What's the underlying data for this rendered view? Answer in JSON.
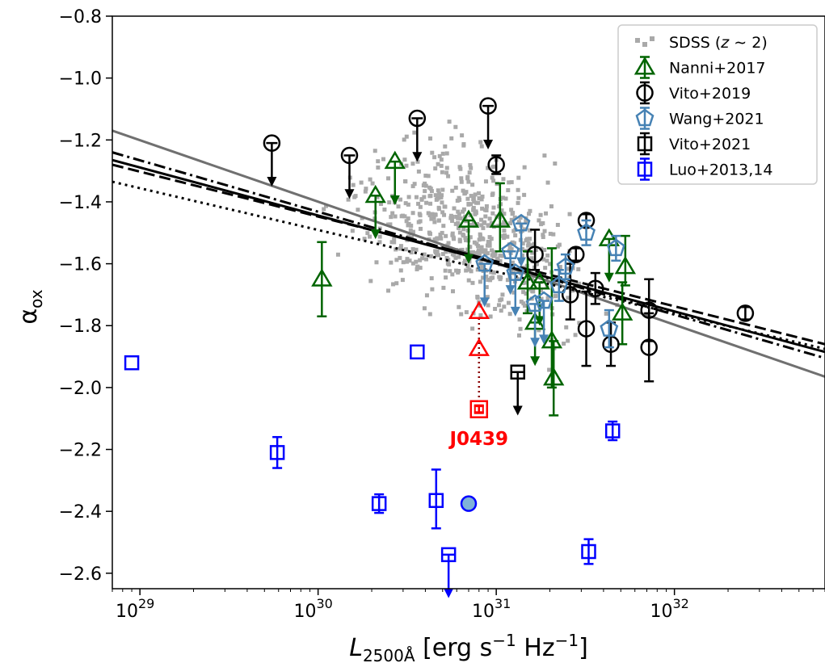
{
  "chart_data": {
    "type": "scatter",
    "title": "",
    "xscale": "log",
    "xlim": [
      7e+28,
      7e+32
    ],
    "ylim": [
      -2.65,
      -0.8
    ],
    "x_ticks": [
      {
        "value": 1e+29,
        "base": "10",
        "exp": "29"
      },
      {
        "value": 1e+30,
        "base": "10",
        "exp": "30"
      },
      {
        "value": 1e+31,
        "base": "10",
        "exp": "31"
      },
      {
        "value": 1e+32,
        "base": "10",
        "exp": "32"
      }
    ],
    "y_ticks": [
      {
        "value": -0.8,
        "label": "−0.8"
      },
      {
        "value": -1.0,
        "label": "−1.0"
      },
      {
        "value": -1.2,
        "label": "−1.2"
      },
      {
        "value": -1.4,
        "label": "−1.4"
      },
      {
        "value": -1.6,
        "label": "−1.6"
      },
      {
        "value": -1.8,
        "label": "−1.8"
      },
      {
        "value": -2.0,
        "label": "−2.0"
      },
      {
        "value": -2.2,
        "label": "−2.2"
      },
      {
        "value": -2.4,
        "label": "−2.4"
      },
      {
        "value": -2.6,
        "label": "−2.6"
      }
    ],
    "xlabel": {
      "base": "L",
      "sub": "2500Å",
      "unit_pre": " [erg s",
      "exp1": "−1",
      "unit_mid": " Hz",
      "exp2": "−1",
      "unit_post": "]"
    },
    "ylabel": {
      "base": "α",
      "sub": "ox"
    },
    "legend": {
      "position": "top-right",
      "entries": [
        {
          "label_pre": "SDSS (",
          "label_it": "z",
          "label_post": " ∼ 2)",
          "marker": "small-square",
          "color": "#a9a9a9"
        },
        {
          "label": "Nanni+2017",
          "marker": "triangle",
          "color": "#006400"
        },
        {
          "label": "Vito+2019",
          "marker": "circle",
          "color": "#000000"
        },
        {
          "label": "Wang+2021",
          "marker": "pentagon",
          "color": "#4682b4"
        },
        {
          "label": "Vito+2021",
          "marker": "square",
          "color": "#000000"
        },
        {
          "label": "Luo+2013,14",
          "marker": "square",
          "color": "#0000ff"
        }
      ]
    },
    "relations": [
      {
        "name": "gray-solid",
        "style": "solid",
        "color": "#707070",
        "points": [
          [
            7e+28,
            -1.17
          ],
          [
            7e+32,
            -1.965
          ]
        ]
      },
      {
        "name": "black-solid",
        "style": "solid",
        "color": "#000000",
        "points": [
          [
            7e+28,
            -1.265
          ],
          [
            7e+32,
            -1.885
          ]
        ]
      },
      {
        "name": "black-dashed",
        "style": "dashed",
        "color": "#000000",
        "points": [
          [
            7e+28,
            -1.28
          ],
          [
            7e+32,
            -1.86
          ]
        ]
      },
      {
        "name": "black-dashdot",
        "style": "dashdot",
        "color": "#000000",
        "points": [
          [
            7e+28,
            -1.24
          ],
          [
            7e+32,
            -1.905
          ]
        ]
      },
      {
        "name": "black-dotted",
        "style": "dotted",
        "color": "#000000",
        "points": [
          [
            7e+28,
            -1.335
          ],
          [
            7e+32,
            -1.875
          ]
        ]
      }
    ],
    "series": [
      {
        "name": "Nanni+2017",
        "marker": "triangle",
        "color": "#006400",
        "points": [
          {
            "x": 1.05e+30,
            "y": -1.65,
            "err": [
              0.12,
              0.12
            ]
          },
          {
            "x": 2.1e+30,
            "y": -1.38,
            "limit": "upper"
          },
          {
            "x": 2.7e+30,
            "y": -1.27,
            "limit": "upper"
          },
          {
            "x": 7e+30,
            "y": -1.46,
            "limit": "upper"
          },
          {
            "x": 1.05e+31,
            "y": -1.46,
            "err": [
              0.1,
              0.12
            ]
          },
          {
            "x": 1.5e+31,
            "y": -1.66,
            "err": [
              0.1,
              0.1
            ]
          },
          {
            "x": 1.75e+31,
            "y": -1.66,
            "limit": "upper"
          },
          {
            "x": 1.65e+31,
            "y": -1.79,
            "limit": "upper"
          },
          {
            "x": 2.05e+31,
            "y": -1.85,
            "err": [
              0.15,
              0.3
            ]
          },
          {
            "x": 2.1e+31,
            "y": -1.97,
            "err": [
              0.12,
              0.12
            ]
          },
          {
            "x": 4.3e+31,
            "y": -1.52,
            "limit": "upper"
          },
          {
            "x": 5.3e+31,
            "y": -1.61,
            "err": [
              0.06,
              0.1
            ]
          },
          {
            "x": 5.1e+31,
            "y": -1.76,
            "err": [
              0.1,
              0.1
            ]
          }
        ]
      },
      {
        "name": "Vito+2019",
        "marker": "circle",
        "color": "#000000",
        "points": [
          {
            "x": 5.5e+29,
            "y": -1.21,
            "limit": "upper"
          },
          {
            "x": 1.5e+30,
            "y": -1.25,
            "limit": "upper"
          },
          {
            "x": 3.6e+30,
            "y": -1.13,
            "limit": "upper"
          },
          {
            "x": 9e+30,
            "y": -1.09,
            "limit": "upper"
          },
          {
            "x": 1e+31,
            "y": -1.28,
            "err": [
              0.03,
              0.03
            ]
          },
          {
            "x": 1.65e+31,
            "y": -1.57,
            "err": [
              0.05,
              0.08
            ]
          },
          {
            "x": 2.8e+31,
            "y": -1.57,
            "err": [
              0.02,
              0.02
            ]
          },
          {
            "x": 3.2e+31,
            "y": -1.46,
            "err": [
              0.02,
              0.02
            ]
          },
          {
            "x": 2.6e+31,
            "y": -1.7,
            "err": [
              0.08,
              0.1
            ]
          },
          {
            "x": 3.2e+31,
            "y": -1.81,
            "err": [
              0.12,
              0.12
            ]
          },
          {
            "x": 3.6e+31,
            "y": -1.68,
            "err": [
              0.05,
              0.05
            ]
          },
          {
            "x": 4.4e+31,
            "y": -1.86,
            "err": [
              0.07,
              0.07
            ]
          },
          {
            "x": 7.2e+31,
            "y": -1.75,
            "err": [
              0.1,
              0.1
            ]
          },
          {
            "x": 7.2e+31,
            "y": -1.87,
            "err": [
              0.11,
              0.11
            ]
          },
          {
            "x": 2.5e+32,
            "y": -1.76,
            "err": [
              0.02,
              0.02
            ]
          }
        ]
      },
      {
        "name": "Wang+2021",
        "marker": "pentagon",
        "color": "#4682b4",
        "points": [
          {
            "x": 8.6e+30,
            "y": -1.6,
            "limit": "upper"
          },
          {
            "x": 1.2e+31,
            "y": -1.56,
            "limit": "upper"
          },
          {
            "x": 1.38e+31,
            "y": -1.47,
            "limit": "upper"
          },
          {
            "x": 1.28e+31,
            "y": -1.63,
            "limit": "upper"
          },
          {
            "x": 1.65e+31,
            "y": -1.73,
            "limit": "upper"
          },
          {
            "x": 1.85e+31,
            "y": -1.72,
            "limit": "upper"
          },
          {
            "x": 2.25e+31,
            "y": -1.67,
            "err": [
              0.05,
              0.05
            ]
          },
          {
            "x": 2.45e+31,
            "y": -1.61,
            "err": [
              0.04,
              0.04
            ]
          },
          {
            "x": 3.2e+31,
            "y": -1.5,
            "err": [
              0.04,
              0.04
            ]
          },
          {
            "x": 4.3e+31,
            "y": -1.81,
            "err": [
              0.06,
              0.06
            ]
          },
          {
            "x": 4.7e+31,
            "y": -1.55,
            "err": [
              0.04,
              0.04
            ]
          }
        ]
      },
      {
        "name": "Vito+2021",
        "marker": "square",
        "color": "#000000",
        "points": [
          {
            "x": 1.32e+31,
            "y": -1.95,
            "limit": "upper"
          }
        ]
      },
      {
        "name": "Luo+2013,14",
        "marker": "square",
        "color": "#0000ff",
        "points": [
          {
            "x": 9e+28,
            "y": -1.92
          },
          {
            "x": 5.9e+29,
            "y": -2.21,
            "err": [
              0.05,
              0.05
            ]
          },
          {
            "x": 2.2e+30,
            "y": -2.375,
            "err": [
              0.03,
              0.03
            ]
          },
          {
            "x": 3.6e+30,
            "y": -1.885
          },
          {
            "x": 4.6e+30,
            "y": -2.365,
            "err": [
              0.09,
              0.1
            ]
          },
          {
            "x": 5.4e+30,
            "y": -2.54,
            "limit": "upper"
          },
          {
            "x": 3.3e+31,
            "y": -2.53,
            "err": [
              0.04,
              0.04
            ]
          },
          {
            "x": 4.5e+31,
            "y": -2.14,
            "err": [
              0.03,
              0.03
            ]
          }
        ]
      },
      {
        "name": "Luo-circle",
        "marker": "filled-circle",
        "color": "#0000ff",
        "fill": "#7fb2d8",
        "points": [
          {
            "x": 7e+30,
            "y": -2.375
          }
        ]
      },
      {
        "name": "J0439",
        "marker": "boxed-square",
        "color": "#ff0000",
        "points": [
          {
            "x": 8e+30,
            "y": -2.07,
            "err": [
              0.01,
              0.01
            ]
          }
        ]
      },
      {
        "name": "J0439-triangles",
        "marker": "triangle",
        "color": "#ff0000",
        "points": [
          {
            "x": 8e+30,
            "y": -1.755
          },
          {
            "x": 8e+30,
            "y": -1.875
          }
        ]
      }
    ],
    "annotations": [
      {
        "text": "J0439",
        "x": 8e+30,
        "y": -2.165,
        "color": "#ff0000"
      }
    ],
    "sdss_cloud": {
      "n": 620,
      "x_center_log10": 30.85,
      "x_sigma_log10": 0.3,
      "slope": -0.14,
      "intercept": -1.5,
      "y_sigma": 0.12
    }
  }
}
